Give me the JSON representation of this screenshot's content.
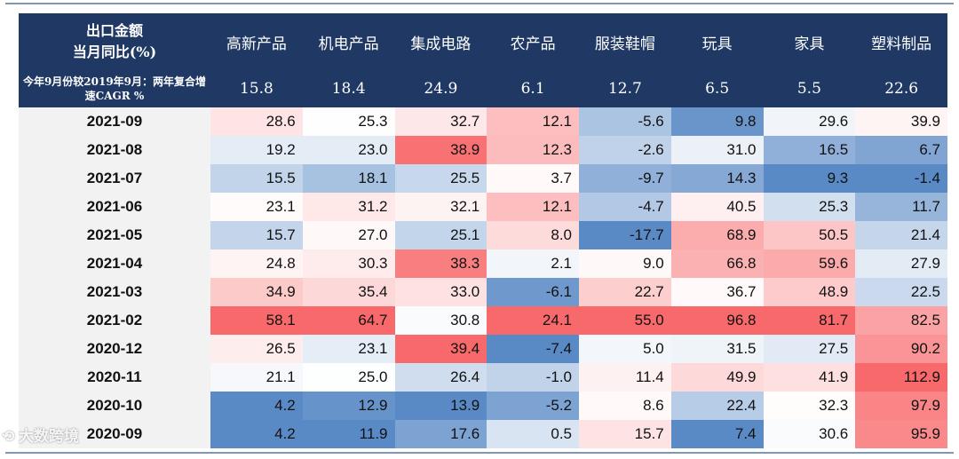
{
  "chart_data": {
    "type": "heatmap",
    "header_title": [
      "出口金额",
      "当月同比(%)"
    ],
    "cagr_label": "今年9月份较2019年9月：两年复合增速CAGR %",
    "categories": [
      "高新产品",
      "机电产品",
      "集成电路",
      "农产品",
      "服装鞋帽",
      "玩具",
      "家具",
      "塑料制品"
    ],
    "cagr": [
      "15.8",
      "18.4",
      "24.9",
      "6.1",
      "12.7",
      "6.5",
      "5.5",
      "22.6"
    ],
    "rows": [
      "2021-09",
      "2021-08",
      "2021-07",
      "2021-06",
      "2021-05",
      "2021-04",
      "2021-03",
      "2021-02",
      "2020-12",
      "2020-11",
      "2020-10",
      "2020-09"
    ],
    "values": [
      [
        28.6,
        25.3,
        32.7,
        12.1,
        -5.6,
        9.8,
        29.6,
        39.9
      ],
      [
        19.2,
        23.0,
        38.9,
        12.3,
        -2.6,
        31.0,
        16.5,
        6.7
      ],
      [
        15.5,
        18.1,
        25.5,
        3.7,
        -9.7,
        14.3,
        9.3,
        -1.4
      ],
      [
        23.1,
        31.2,
        32.1,
        12.1,
        -4.7,
        40.5,
        25.3,
        11.7
      ],
      [
        15.7,
        27.0,
        25.1,
        8.0,
        -17.7,
        68.9,
        50.5,
        21.4
      ],
      [
        24.8,
        30.3,
        38.3,
        2.1,
        9.0,
        66.8,
        59.6,
        27.9
      ],
      [
        34.9,
        35.4,
        33.0,
        -6.1,
        22.7,
        36.7,
        48.9,
        22.5
      ],
      [
        58.1,
        64.7,
        30.8,
        24.1,
        55.0,
        96.8,
        81.7,
        82.5
      ],
      [
        26.5,
        23.1,
        39.4,
        -7.4,
        5.0,
        31.5,
        27.5,
        90.2
      ],
      [
        21.1,
        25.0,
        26.4,
        -1.0,
        11.4,
        49.9,
        41.9,
        112.9
      ],
      [
        4.2,
        12.9,
        13.9,
        -5.2,
        8.6,
        22.4,
        32.3,
        97.9
      ],
      [
        4.2,
        11.9,
        17.6,
        0.5,
        15.7,
        7.4,
        30.6,
        95.9
      ]
    ],
    "color_scale": {
      "low": "#5a8ac6",
      "mid": "#ffffff",
      "high": "#f8696b",
      "scope": "per-column"
    }
  },
  "watermark": "大数跨境"
}
